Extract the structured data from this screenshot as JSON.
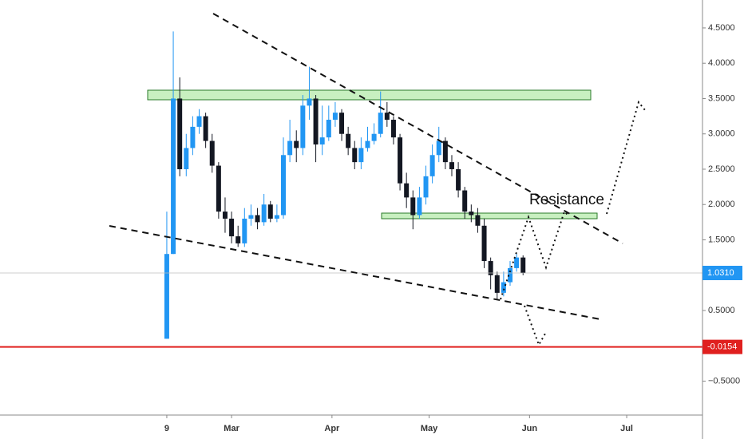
{
  "chart_data": {
    "type": "candlestick",
    "x": [
      8,
      10,
      12,
      14,
      16,
      18,
      20,
      22,
      24,
      26,
      28,
      30,
      32,
      34,
      36,
      38,
      40,
      42,
      44,
      46,
      48,
      50,
      52,
      54,
      56,
      58,
      60,
      62,
      64,
      66,
      68,
      70,
      72,
      74,
      76,
      78,
      80,
      82,
      84,
      86,
      88,
      90,
      92,
      94,
      96,
      98,
      100,
      102,
      104,
      106,
      108,
      110,
      112,
      114,
      116,
      118
    ],
    "open": [
      0.1,
      1.3,
      3.5,
      2.5,
      2.8,
      3.1,
      3.25,
      2.9,
      2.55,
      1.9,
      1.8,
      1.55,
      1.45,
      1.8,
      1.85,
      1.75,
      2.0,
      1.8,
      1.85,
      2.7,
      2.9,
      2.8,
      3.4,
      3.5,
      2.85,
      2.95,
      3.2,
      3.3,
      3.0,
      2.8,
      2.6,
      2.8,
      2.9,
      3.0,
      3.3,
      3.2,
      2.95,
      2.3,
      2.1,
      1.85,
      2.1,
      2.4,
      2.7,
      2.9,
      2.6,
      2.5,
      2.2,
      1.9,
      1.85,
      1.7,
      1.2,
      1.0,
      0.75,
      0.9,
      1.1,
      1.25
    ],
    "high": [
      1.9,
      4.45,
      3.8,
      3.0,
      3.25,
      3.35,
      3.3,
      3.0,
      2.6,
      2.1,
      1.9,
      1.7,
      1.95,
      2.0,
      1.95,
      2.15,
      2.05,
      2.0,
      2.95,
      3.2,
      3.05,
      3.55,
      3.95,
      3.55,
      3.4,
      3.4,
      3.45,
      3.35,
      3.1,
      2.9,
      2.95,
      3.1,
      3.15,
      3.6,
      3.45,
      3.25,
      3.0,
      2.45,
      2.2,
      2.25,
      2.55,
      2.85,
      3.1,
      2.95,
      2.7,
      2.6,
      2.25,
      2.0,
      1.95,
      1.8,
      1.25,
      1.05,
      1.05,
      1.2,
      1.3,
      1.28
    ],
    "low": [
      0.1,
      1.3,
      2.4,
      2.4,
      2.7,
      3.0,
      2.8,
      2.45,
      1.8,
      1.6,
      1.45,
      1.4,
      1.4,
      1.7,
      1.65,
      1.7,
      1.75,
      1.75,
      1.8,
      2.6,
      2.6,
      2.7,
      3.2,
      2.6,
      2.7,
      2.9,
      3.1,
      2.9,
      2.7,
      2.5,
      2.5,
      2.75,
      2.85,
      2.95,
      3.1,
      2.85,
      2.2,
      1.95,
      1.65,
      1.8,
      2.0,
      2.3,
      2.6,
      2.5,
      2.4,
      2.1,
      1.8,
      1.75,
      1.6,
      1.1,
      0.8,
      0.65,
      0.7,
      0.85,
      1.05,
      1.0
    ],
    "close": [
      1.3,
      3.5,
      2.5,
      2.8,
      3.1,
      3.25,
      2.9,
      2.55,
      1.9,
      1.8,
      1.55,
      1.45,
      1.8,
      1.85,
      1.75,
      2.0,
      1.8,
      1.85,
      2.7,
      2.9,
      2.8,
      3.4,
      3.5,
      2.85,
      2.95,
      3.2,
      3.3,
      3.0,
      2.8,
      2.6,
      2.8,
      2.9,
      3.0,
      3.3,
      3.2,
      2.95,
      2.3,
      2.1,
      1.85,
      2.1,
      2.4,
      2.7,
      2.9,
      2.6,
      2.5,
      2.2,
      1.9,
      1.85,
      1.7,
      1.2,
      1.0,
      0.75,
      0.9,
      1.1,
      1.25,
      1.031
    ],
    "up_color": "#2196f3",
    "down_color": "#131722",
    "xlim": [
      -43.5,
      173.4
    ],
    "xticks": [
      {
        "value": 8,
        "label": "9"
      },
      {
        "value": 28,
        "label": "Mar"
      },
      {
        "value": 59,
        "label": "Apr"
      },
      {
        "value": 89,
        "label": "May"
      },
      {
        "value": 120,
        "label": "Jun"
      },
      {
        "value": 150,
        "label": "Jul"
      }
    ],
    "ylim": [
      -0.98,
      4.895
    ],
    "yticks": [
      {
        "value": 4.5,
        "label": "4.5000"
      },
      {
        "value": 4,
        "label": "4.0000"
      },
      {
        "value": 3.5,
        "label": "3.5000"
      },
      {
        "value": 3,
        "label": "3.0000"
      },
      {
        "value": 2.5,
        "label": "2.5000"
      },
      {
        "value": 2,
        "label": "2.0000"
      },
      {
        "value": 1.5,
        "label": "1.5000"
      },
      {
        "value": 0.5,
        "label": "0.5000"
      },
      {
        "value": -0.5,
        "label": "−0.5000"
      }
    ],
    "last_price": {
      "value": 1.031,
      "label": "1.0310",
      "color": "#2196f3"
    },
    "level": {
      "value": -0.0154,
      "label": "-0.0154",
      "color": "#e0201f"
    },
    "annotation": "Resistance"
  }
}
